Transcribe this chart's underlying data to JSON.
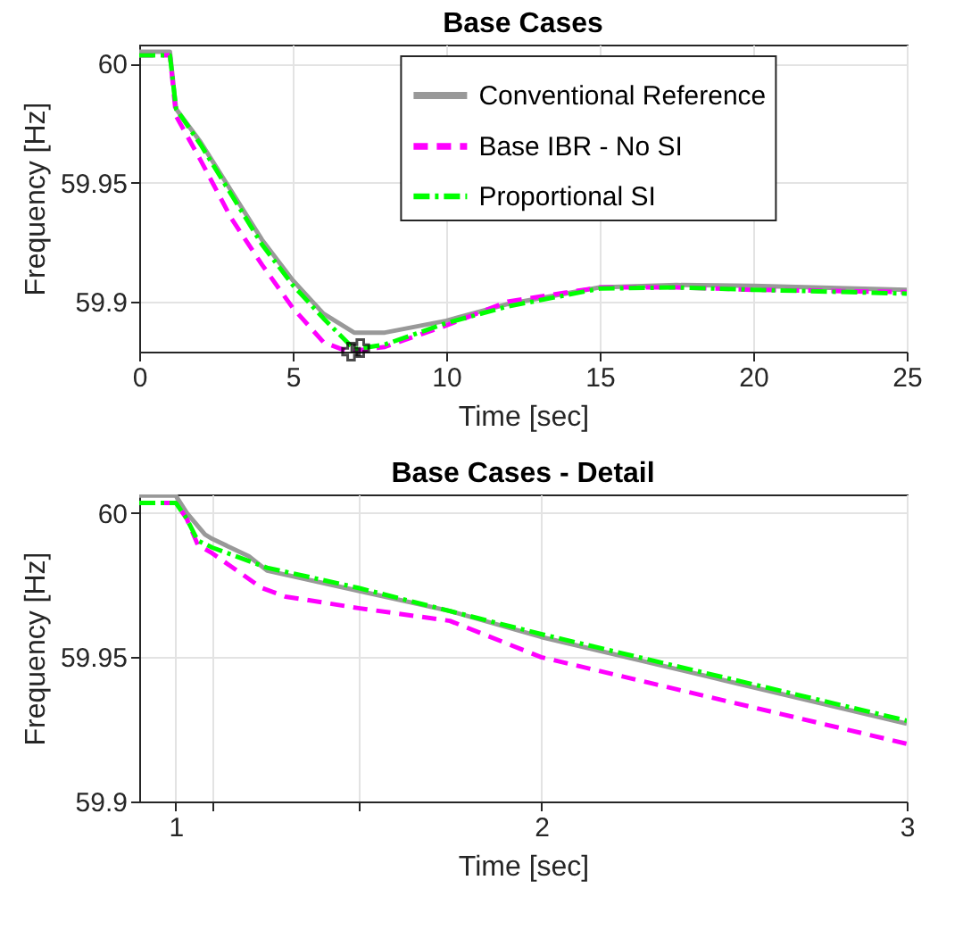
{
  "chart_data": [
    {
      "type": "line",
      "title": "Base Cases",
      "xlabel": "Time [sec]",
      "ylabel": "Frequency [Hz]",
      "xlim": [
        0,
        25
      ],
      "xticks": [
        0,
        5,
        10,
        15,
        20,
        25
      ],
      "ylim": [
        59.879,
        60.008
      ],
      "yticks": [
        59.9,
        59.95,
        60
      ],
      "grid": true,
      "legend": "top",
      "series": [
        {
          "name": "Conventional Reference",
          "color": "#999999",
          "line_style": "solid",
          "x": [
            0,
            1,
            1.2,
            2,
            3,
            4,
            5,
            6,
            7,
            8,
            10,
            12,
            15,
            17.5,
            20,
            25
          ],
          "values": [
            60.005,
            60.005,
            59.981,
            59.967,
            59.9465,
            59.926,
            59.909,
            59.895,
            59.887,
            59.887,
            59.892,
            59.899,
            59.906,
            59.907,
            59.9067,
            59.905
          ]
        },
        {
          "name": "Base IBR - No SI",
          "color": "#ff00ff",
          "line_style": "dashed",
          "x": [
            0,
            1,
            1.2,
            2,
            3,
            4,
            5,
            6,
            6.8,
            8,
            10,
            12,
            15,
            17.5,
            20,
            25
          ],
          "values": [
            60.0035,
            60.0035,
            59.978,
            59.9594,
            59.935,
            59.9155,
            59.8974,
            59.883,
            59.879,
            59.881,
            59.89,
            59.9,
            59.906,
            59.906,
            59.905,
            59.904
          ]
        },
        {
          "name": "Proportional SI",
          "color": "#00ff00",
          "line_style": "dashdot",
          "x": [
            0,
            1,
            1.2,
            2,
            3,
            4,
            5,
            6,
            7,
            8,
            10,
            12,
            15,
            17.5,
            20,
            25
          ],
          "values": [
            60.0035,
            60.0035,
            59.981,
            59.966,
            59.945,
            59.924,
            59.907,
            59.893,
            59.88,
            59.882,
            59.891,
            59.898,
            59.9055,
            59.906,
            59.905,
            59.9034
          ]
        },
        {
          "type": "scatter",
          "marker": "cross",
          "color": "#000000",
          "x": [
            6.9,
            7.2
          ],
          "values": [
            59.879,
            59.8805
          ]
        }
      ]
    },
    {
      "type": "line",
      "title": "Base Cases - Detail",
      "xlabel": "Time [sec]",
      "ylabel": "Frequency [Hz]",
      "xlim": [
        0.9,
        3
      ],
      "xticks": [
        1,
        {
          "value": 1.1,
          "label": null
        },
        {
          "value": 1.5,
          "label": null
        },
        2,
        3
      ],
      "ylim": [
        59.9,
        60.0064
      ],
      "yticks": [
        59.9,
        59.95,
        60
      ],
      "grid": true,
      "series": [
        {
          "color": "#999999",
          "line_style": "solid",
          "x": [
            0.9,
            1,
            1.03,
            1.08,
            1.1,
            1.2,
            1.25,
            1.5,
            1.75,
            2,
            2.5,
            3
          ],
          "values": [
            60.006,
            60.006,
            60.0,
            59.9925,
            59.991,
            59.985,
            59.98,
            59.973,
            59.966,
            59.957,
            59.942,
            59.927
          ]
        },
        {
          "color": "#ff00ff",
          "line_style": "dashed",
          "x": [
            0.9,
            1,
            1.03,
            1.06,
            1.1,
            1.235,
            1.3,
            1.5,
            1.75,
            2,
            2.5,
            3
          ],
          "values": [
            60.0035,
            60.0035,
            59.998,
            59.989,
            59.986,
            59.974,
            59.971,
            59.967,
            59.9626,
            59.95,
            59.935,
            59.92
          ]
        },
        {
          "color": "#00ff00",
          "line_style": "dashdot",
          "x": [
            0.9,
            1,
            1.03,
            1.06,
            1.1,
            1.25,
            1.5,
            2,
            2.5,
            3
          ],
          "values": [
            60.0035,
            60.0035,
            59.998,
            59.9904,
            59.988,
            59.981,
            59.974,
            59.958,
            59.943,
            59.928
          ]
        }
      ]
    }
  ]
}
